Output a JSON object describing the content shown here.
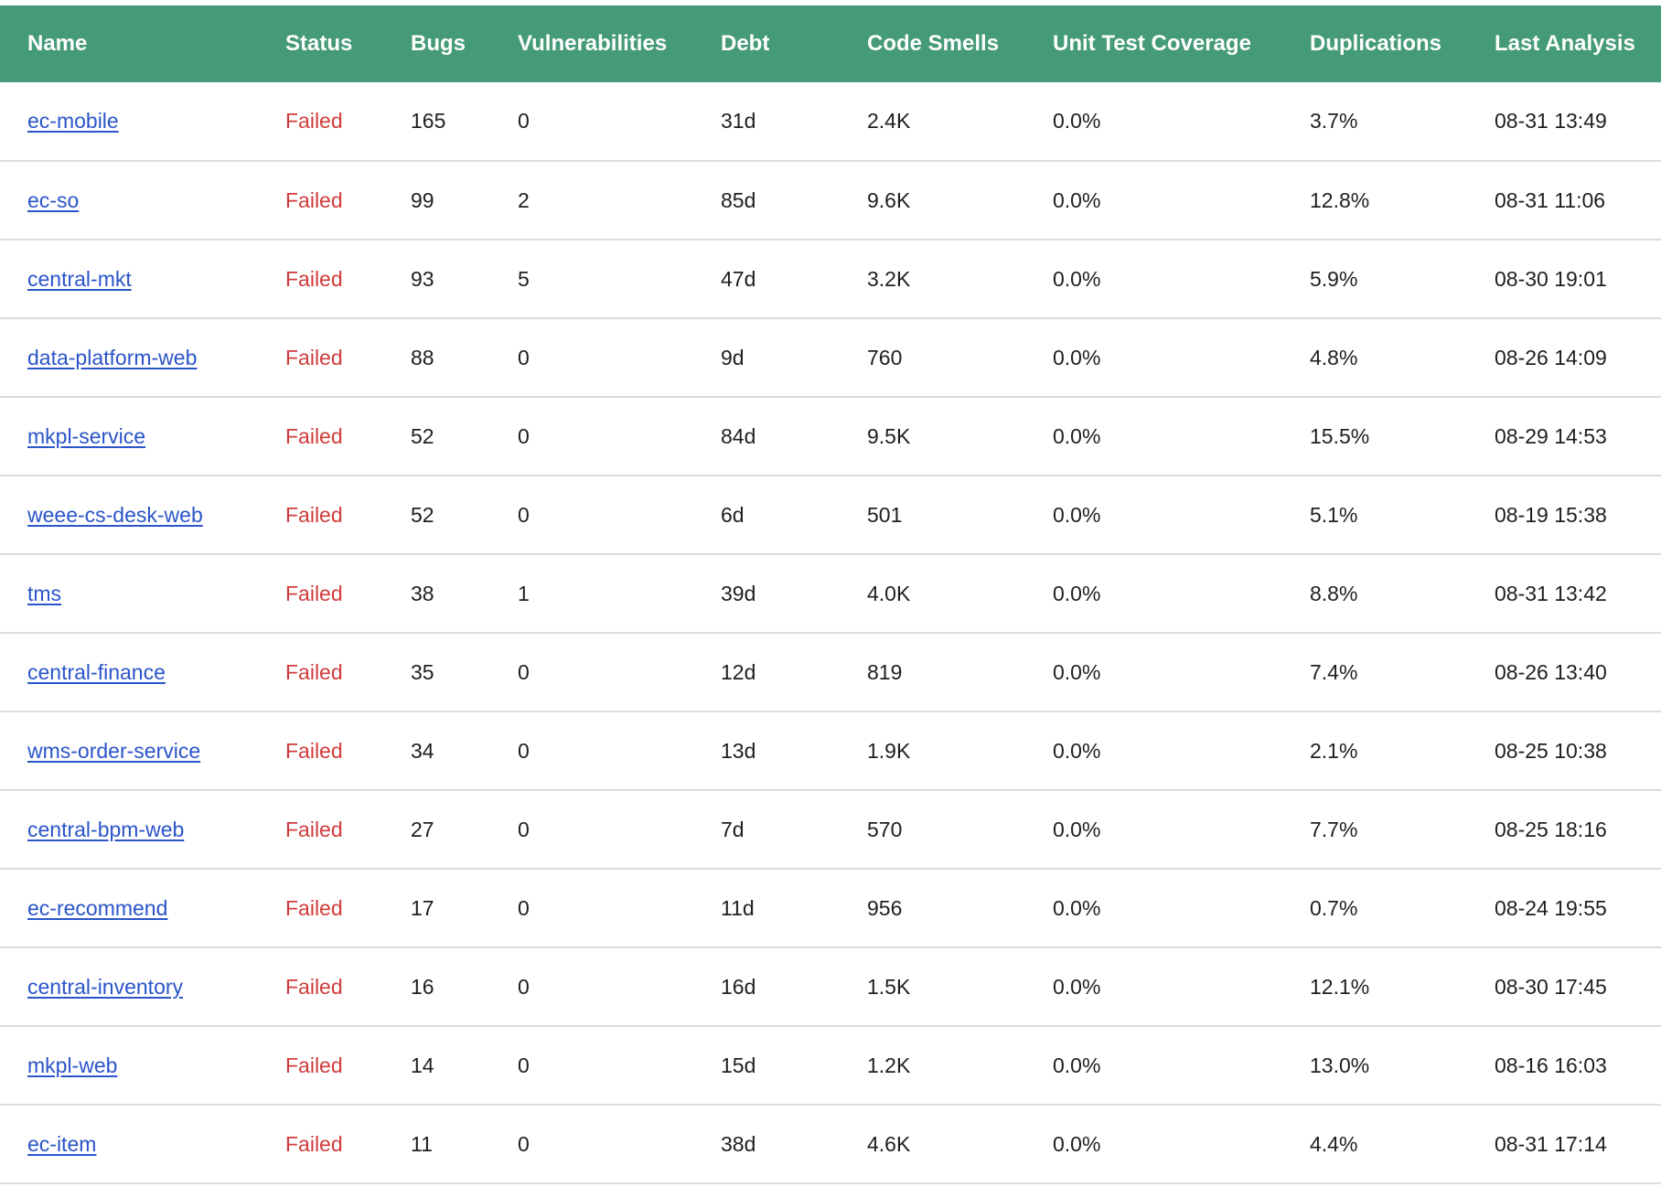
{
  "colors": {
    "header_bg": "#459a78",
    "header_text": "#ffffff",
    "link": "#2a55c9",
    "failed": "#d13b3b",
    "row_border": "#dcdcdc"
  },
  "table": {
    "headers": {
      "name": "Name",
      "status": "Status",
      "bugs": "Bugs",
      "vulnerabilities": "Vulnerabilities",
      "debt": "Debt",
      "code_smells": "Code Smells",
      "coverage": "Unit Test Coverage",
      "duplications": "Duplications",
      "last_analysis": "Last Analysis"
    },
    "rows": [
      {
        "name": "ec-mobile",
        "status": "Failed",
        "bugs": "165",
        "vulnerabilities": "0",
        "debt": "31d",
        "code_smells": "2.4K",
        "coverage": "0.0%",
        "duplications": "3.7%",
        "last_analysis": "08-31 13:49"
      },
      {
        "name": "ec-so",
        "status": "Failed",
        "bugs": "99",
        "vulnerabilities": "2",
        "debt": "85d",
        "code_smells": "9.6K",
        "coverage": "0.0%",
        "duplications": "12.8%",
        "last_analysis": "08-31 11:06"
      },
      {
        "name": "central-mkt",
        "status": "Failed",
        "bugs": "93",
        "vulnerabilities": "5",
        "debt": "47d",
        "code_smells": "3.2K",
        "coverage": "0.0%",
        "duplications": "5.9%",
        "last_analysis": "08-30 19:01"
      },
      {
        "name": "data-platform-web",
        "status": "Failed",
        "bugs": "88",
        "vulnerabilities": "0",
        "debt": "9d",
        "code_smells": "760",
        "coverage": "0.0%",
        "duplications": "4.8%",
        "last_analysis": "08-26 14:09"
      },
      {
        "name": "mkpl-service",
        "status": "Failed",
        "bugs": "52",
        "vulnerabilities": "0",
        "debt": "84d",
        "code_smells": "9.5K",
        "coverage": "0.0%",
        "duplications": "15.5%",
        "last_analysis": "08-29 14:53"
      },
      {
        "name": "weee-cs-desk-web",
        "status": "Failed",
        "bugs": "52",
        "vulnerabilities": "0",
        "debt": "6d",
        "code_smells": "501",
        "coverage": "0.0%",
        "duplications": "5.1%",
        "last_analysis": "08-19 15:38"
      },
      {
        "name": "tms",
        "status": "Failed",
        "bugs": "38",
        "vulnerabilities": "1",
        "debt": "39d",
        "code_smells": "4.0K",
        "coverage": "0.0%",
        "duplications": "8.8%",
        "last_analysis": "08-31 13:42"
      },
      {
        "name": "central-finance",
        "status": "Failed",
        "bugs": "35",
        "vulnerabilities": "0",
        "debt": "12d",
        "code_smells": "819",
        "coverage": "0.0%",
        "duplications": "7.4%",
        "last_analysis": "08-26 13:40"
      },
      {
        "name": "wms-order-service",
        "status": "Failed",
        "bugs": "34",
        "vulnerabilities": "0",
        "debt": "13d",
        "code_smells": "1.9K",
        "coverage": "0.0%",
        "duplications": "2.1%",
        "last_analysis": "08-25 10:38"
      },
      {
        "name": "central-bpm-web",
        "status": "Failed",
        "bugs": "27",
        "vulnerabilities": "0",
        "debt": "7d",
        "code_smells": "570",
        "coverage": "0.0%",
        "duplications": "7.7%",
        "last_analysis": "08-25 18:16"
      },
      {
        "name": "ec-recommend",
        "status": "Failed",
        "bugs": "17",
        "vulnerabilities": "0",
        "debt": "11d",
        "code_smells": "956",
        "coverage": "0.0%",
        "duplications": "0.7%",
        "last_analysis": "08-24 19:55"
      },
      {
        "name": "central-inventory",
        "status": "Failed",
        "bugs": "16",
        "vulnerabilities": "0",
        "debt": "16d",
        "code_smells": "1.5K",
        "coverage": "0.0%",
        "duplications": "12.1%",
        "last_analysis": "08-30 17:45"
      },
      {
        "name": "mkpl-web",
        "status": "Failed",
        "bugs": "14",
        "vulnerabilities": "0",
        "debt": "15d",
        "code_smells": "1.2K",
        "coverage": "0.0%",
        "duplications": "13.0%",
        "last_analysis": "08-16 16:03"
      },
      {
        "name": "ec-item",
        "status": "Failed",
        "bugs": "11",
        "vulnerabilities": "0",
        "debt": "38d",
        "code_smells": "4.6K",
        "coverage": "0.0%",
        "duplications": "4.4%",
        "last_analysis": "08-31 17:14"
      }
    ]
  }
}
